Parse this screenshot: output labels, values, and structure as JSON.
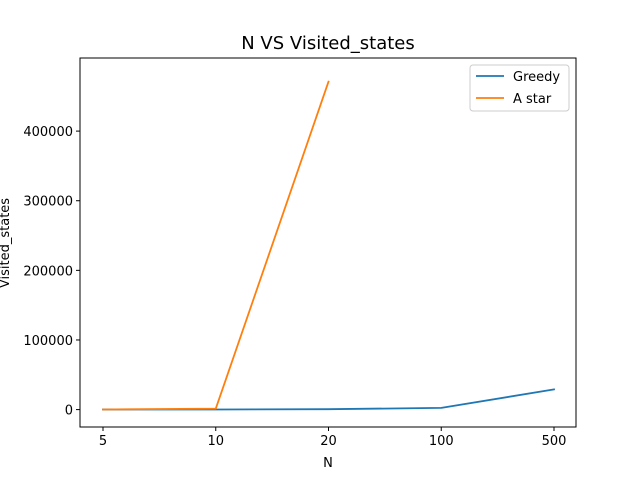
{
  "chart_data": {
    "type": "line",
    "title": "N VS Visited_states",
    "xlabel": "N",
    "ylabel": "Visited_states",
    "categories": [
      "5",
      "10",
      "20",
      "100",
      "500"
    ],
    "series": [
      {
        "name": "Greedy",
        "color": "#1f77b4",
        "values": [
          100,
          200,
          500,
          2500,
          29000
        ]
      },
      {
        "name": "A star",
        "color": "#ff7f0e",
        "values": [
          200,
          1500,
          471000,
          null,
          null
        ]
      }
    ],
    "ylim": [
      -25000,
      505000
    ],
    "yticks": [
      0,
      100000,
      200000,
      300000,
      400000
    ],
    "ytick_labels": [
      "0",
      "100000",
      "200000",
      "300000",
      "400000"
    ],
    "grid": false,
    "legend_position": "top-right"
  }
}
